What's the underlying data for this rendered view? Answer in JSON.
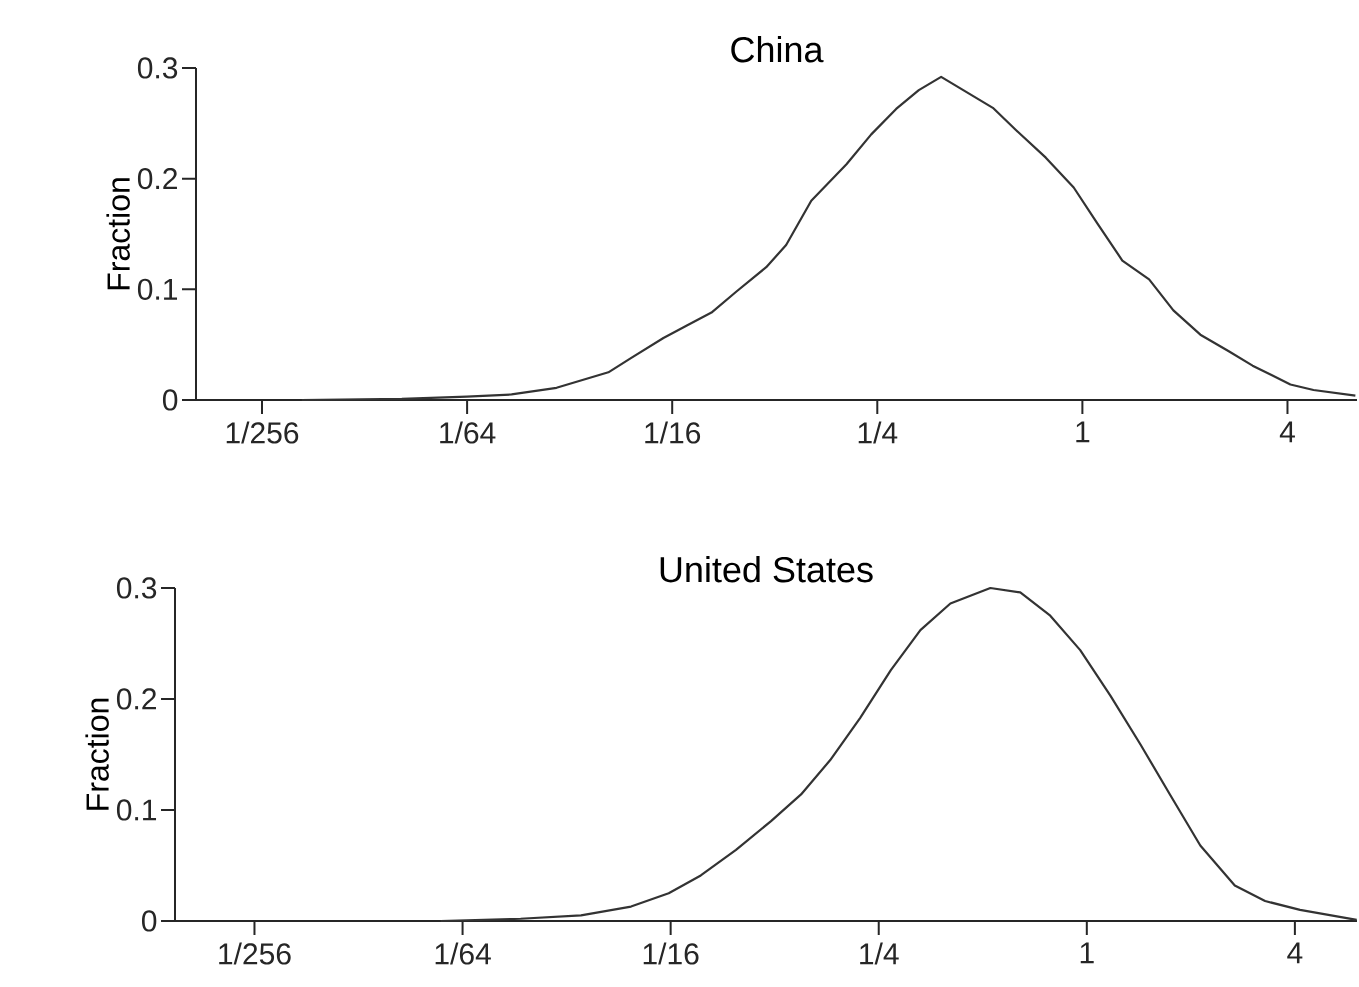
{
  "chart_data": [
    {
      "type": "line",
      "title": "China",
      "ylabel": "Fraction",
      "log": "x",
      "color": "#333333",
      "x": [
        0.00511,
        0.01005,
        0.0156,
        0.0211,
        0.0286,
        0.0406,
        0.0474,
        0.0589,
        0.0688,
        0.0815,
        0.0965,
        0.118,
        0.135,
        0.16,
        0.203,
        0.24,
        0.284,
        0.331,
        0.385,
        0.546,
        0.638,
        0.781,
        0.943,
        1.11,
        1.31,
        1.57,
        1.85,
        2.22,
        2.69,
        3.16,
        4.08,
        4.77,
        6.33
      ],
      "values": [
        0,
        0.001,
        0.003,
        0.005,
        0.011,
        0.025,
        0.038,
        0.056,
        0.067,
        0.079,
        0.098,
        0.12,
        0.14,
        0.18,
        0.213,
        0.24,
        0.263,
        0.28,
        0.292,
        0.264,
        0.244,
        0.219,
        0.192,
        0.159,
        0.126,
        0.109,
        0.081,
        0.059,
        0.044,
        0.031,
        0.014,
        0.009,
        0.004
      ],
      "xlim": [
        0.0025,
        6.4
      ],
      "ylim": [
        0,
        0.3
      ],
      "xticks": [
        {
          "value": 0.00390625,
          "label": "1/256"
        },
        {
          "value": 0.015625,
          "label": "1/64"
        },
        {
          "value": 0.0625,
          "label": "1/16"
        },
        {
          "value": 0.25,
          "label": "1/4"
        },
        1,
        4
      ],
      "yticks": [
        0,
        0.1,
        0.2,
        0.3
      ]
    },
    {
      "type": "line",
      "title": "United States",
      "ylabel": "Fraction",
      "log": "x",
      "color": "#333333",
      "x": [
        0.0135,
        0.023,
        0.0344,
        0.048,
        0.0617,
        0.0764,
        0.0966,
        0.122,
        0.149,
        0.181,
        0.221,
        0.271,
        0.33,
        0.403,
        0.526,
        0.642,
        0.784,
        0.957,
        1.17,
        1.43,
        1.74,
        2.13,
        2.68,
        3.28,
        4.14,
        6.04
      ],
      "values": [
        0,
        0.002,
        0.005,
        0.013,
        0.025,
        0.041,
        0.064,
        0.09,
        0.114,
        0.145,
        0.183,
        0.226,
        0.262,
        0.286,
        0.3,
        0.296,
        0.275,
        0.244,
        0.203,
        0.159,
        0.114,
        0.068,
        0.032,
        0.018,
        0.01,
        0.001
      ],
      "xlim": [
        0.0023,
        6.05
      ],
      "ylim": [
        0,
        0.3
      ],
      "xticks": [
        {
          "value": 0.00390625,
          "label": "1/256"
        },
        {
          "value": 0.015625,
          "label": "1/64"
        },
        {
          "value": 0.0625,
          "label": "1/16"
        },
        {
          "value": 0.25,
          "label": "1/4"
        },
        1,
        4
      ],
      "yticks": [
        0,
        0.1,
        0.2,
        0.3
      ]
    }
  ]
}
